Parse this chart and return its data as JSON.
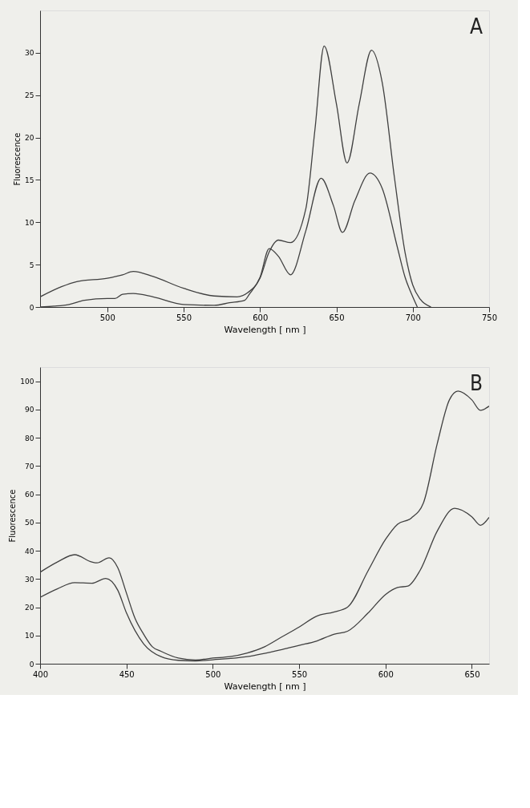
{
  "chart_data": [
    {
      "type": "line",
      "xlabel": "Wavelength [ nm ]",
      "ylabel": "Fluorescence",
      "annotations": [
        "A"
      ],
      "xlim": [
        456,
        750
      ],
      "ylim": [
        0,
        35
      ],
      "xticks": [
        500,
        550,
        600,
        650,
        700,
        750
      ],
      "yticks": [
        0,
        5,
        10,
        15,
        20,
        25,
        30
      ],
      "grid": false,
      "line_style": "solid",
      "series": [
        {
          "color": "#404040",
          "x": [
            456,
            470,
            480,
            500,
            510,
            517,
            530,
            550,
            570,
            585,
            592,
            600,
            606,
            612,
            620,
            630,
            636,
            642,
            650,
            657,
            665,
            673,
            680,
            688,
            695,
            700,
            705,
            712
          ],
          "values": [
            1.2,
            2.4,
            3.0,
            3.4,
            3.8,
            4.2,
            3.6,
            2.2,
            1.3,
            1.2,
            1.7,
            3.4,
            6.5,
            7.9,
            7.6,
            11.6,
            21,
            30.8,
            24,
            17,
            24,
            30.3,
            26.5,
            15.3,
            6.4,
            2.6,
            0.9,
            0
          ]
        },
        {
          "color": "#404040",
          "x": [
            456,
            465,
            475,
            485,
            500,
            505,
            510,
            517,
            530,
            550,
            570,
            580,
            590,
            593,
            600,
            606,
            612,
            620,
            630,
            640,
            648,
            654,
            662,
            672,
            680,
            690,
            695,
            700,
            703
          ],
          "values": [
            0,
            0.1,
            0.3,
            0.8,
            1.0,
            1.0,
            1.5,
            1.6,
            1.2,
            0.3,
            0.2,
            0.5,
            0.8,
            1.5,
            3.5,
            6.9,
            6.0,
            3.8,
            9,
            15.2,
            12,
            8.8,
            12.5,
            15.8,
            14,
            7,
            3.5,
            1.2,
            0
          ]
        }
      ]
    },
    {
      "type": "line",
      "xlabel": "Wavelength [ nm ]",
      "ylabel": "Fluorescence",
      "annotations": [
        "B"
      ],
      "xlim": [
        400,
        660
      ],
      "ylim": [
        0,
        105
      ],
      "xticks": [
        400,
        450,
        500,
        550,
        600,
        650
      ],
      "yticks": [
        0,
        10,
        20,
        30,
        40,
        50,
        60,
        70,
        80,
        90,
        100
      ],
      "grid": false,
      "line_style": "solid",
      "series": [
        {
          "color": "#404040",
          "x": [
            400,
            410,
            420,
            430,
            433,
            440,
            445,
            450,
            455,
            460,
            465,
            470,
            480,
            490,
            500,
            510,
            520,
            530,
            540,
            550,
            560,
            570,
            578,
            590,
            600,
            607,
            615,
            622,
            630,
            637,
            642,
            650,
            655,
            660
          ],
          "values": [
            32.4,
            36,
            38.6,
            36,
            35.7,
            37.5,
            34,
            25,
            16,
            10.4,
            6,
            4.4,
            2,
            1.3,
            2,
            2.5,
            3.8,
            6,
            9.5,
            13,
            16.8,
            18.3,
            20,
            33,
            44,
            49.4,
            51.6,
            57,
            78,
            93.4,
            96.5,
            93.4,
            89.7,
            91.2
          ]
        },
        {
          "color": "#404040",
          "x": [
            400,
            410,
            420,
            430,
            438,
            445,
            450,
            460,
            470,
            480,
            490,
            500,
            520,
            540,
            550,
            560,
            570,
            578,
            590,
            600,
            607,
            613,
            620,
            630,
            640,
            650,
            655,
            660
          ],
          "values": [
            23.5,
            26.5,
            28.7,
            28.5,
            30.2,
            26,
            18,
            7,
            2.5,
            1.2,
            1,
            1.4,
            2.5,
            5,
            6.5,
            8,
            10.4,
            11.5,
            18,
            24.5,
            27,
            27.5,
            33,
            47,
            55,
            52,
            49,
            51.8
          ]
        }
      ]
    }
  ]
}
